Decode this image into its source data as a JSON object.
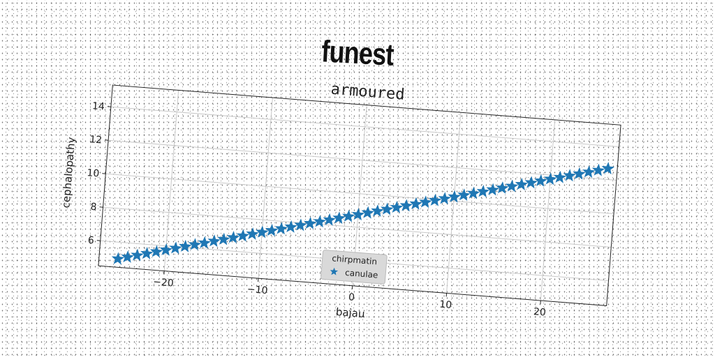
{
  "suptitle": "funest",
  "chart_data": {
    "type": "scatter",
    "title": "armoured",
    "xlabel": "bajau",
    "ylabel": "cephalopathy",
    "xlim": [
      -27,
      27
    ],
    "ylim": [
      4.5,
      15.3
    ],
    "xticks": [
      -20,
      -10,
      0,
      10,
      20
    ],
    "xtick_labels": [
      "−20",
      "−10",
      "0",
      "10",
      "20"
    ],
    "yticks": [
      6,
      8,
      10,
      12,
      14
    ],
    "ytick_labels": [
      "6",
      "8",
      "10",
      "12",
      "14"
    ],
    "grid": true,
    "legend": {
      "title": "chirpmatin",
      "placement": "bottom-center"
    },
    "series": [
      {
        "name": "canulae",
        "marker": "star",
        "color": "#1f77b4",
        "x": [
          -25.0,
          -24.0,
          -23.0,
          -22.0,
          -21.0,
          -20.0,
          -19.0,
          -18.0,
          -17.0,
          -16.0,
          -15.0,
          -14.0,
          -13.0,
          -12.0,
          -11.0,
          -10.0,
          -9.0,
          -8.0,
          -7.0,
          -6.0,
          -5.0,
          -4.0,
          -3.0,
          -2.0,
          -1.0,
          0.0,
          1.0,
          2.0,
          3.0,
          4.0,
          5.0,
          6.0,
          7.0,
          8.0,
          9.0,
          10.0,
          11.0,
          12.0,
          13.0,
          14.0,
          15.0,
          16.0,
          17.0,
          18.0,
          19.0,
          20.0,
          21.0,
          22.0,
          23.0,
          24.0,
          25.0,
          26.0
        ],
        "y": [
          5.0,
          5.15,
          5.3,
          5.45,
          5.6,
          5.75,
          5.9,
          6.05,
          6.2,
          6.35,
          6.5,
          6.65,
          6.8,
          6.95,
          7.1,
          7.25,
          7.4,
          7.55,
          7.7,
          7.85,
          8.0,
          8.15,
          8.3,
          8.45,
          8.6,
          8.75,
          8.9,
          9.05,
          9.2,
          9.35,
          9.5,
          9.65,
          9.8,
          9.95,
          10.1,
          10.25,
          10.4,
          10.55,
          10.7,
          10.85,
          11.0,
          11.15,
          11.3,
          11.45,
          11.6,
          11.75,
          11.9,
          12.05,
          12.2,
          12.35,
          12.5,
          12.65
        ]
      }
    ]
  }
}
